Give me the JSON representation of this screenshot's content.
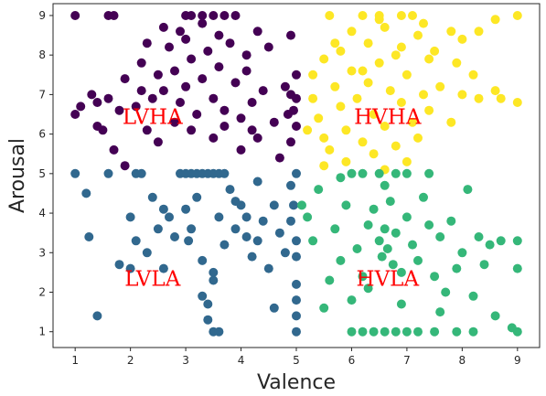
{
  "chart_data": {
    "type": "scatter",
    "xlabel": "Valence",
    "ylabel": "Arousal",
    "xlim": [
      0.6,
      9.4
    ],
    "ylim": [
      0.6,
      9.3
    ],
    "xticks": [
      1,
      2,
      3,
      4,
      5,
      6,
      7,
      8,
      9
    ],
    "yticks": [
      1,
      2,
      3,
      4,
      5,
      6,
      7,
      8,
      9
    ],
    "grid": false,
    "colors": {
      "LVHA": "#440154",
      "HVHA": "#fde725",
      "LVLA": "#31688e",
      "HVLA": "#35b779",
      "annotation": "#ff0000"
    },
    "annotations": [
      {
        "text": "LVHA",
        "x": 2.4,
        "y": 6.4
      },
      {
        "text": "HVHA",
        "x": 6.65,
        "y": 6.4
      },
      {
        "text": "LVLA",
        "x": 2.4,
        "y": 2.3
      },
      {
        "text": "HVLA",
        "x": 6.65,
        "y": 2.3
      }
    ],
    "series": [
      {
        "group": "LVHA",
        "points": [
          [
            1,
            9
          ],
          [
            1.6,
            9
          ],
          [
            1.7,
            9
          ],
          [
            3,
            9
          ],
          [
            3.1,
            9
          ],
          [
            3.3,
            9
          ],
          [
            3.5,
            9
          ],
          [
            3.7,
            9
          ],
          [
            3.9,
            9
          ],
          [
            4.3,
            8.6
          ],
          [
            4.5,
            8.2
          ],
          [
            4.9,
            8.5
          ],
          [
            1,
            6.5
          ],
          [
            1.1,
            6.7
          ],
          [
            1.3,
            7
          ],
          [
            1.4,
            6.8
          ],
          [
            1.5,
            6.1
          ],
          [
            1.6,
            6.9
          ],
          [
            1.7,
            5.6
          ],
          [
            1.8,
            6.6
          ],
          [
            1.9,
            7.4
          ],
          [
            2.1,
            6.7
          ],
          [
            2.2,
            7.8
          ],
          [
            2.3,
            6.1
          ],
          [
            2.4,
            6.9
          ],
          [
            2.5,
            7.5
          ],
          [
            2.6,
            7.1
          ],
          [
            2.7,
            8.2
          ],
          [
            2.8,
            7.6
          ],
          [
            2.9,
            6.8
          ],
          [
            3,
            7.2
          ],
          [
            3.1,
            7.9
          ],
          [
            3.2,
            6.5
          ],
          [
            3.3,
            7.4
          ],
          [
            3.4,
            8.1
          ],
          [
            3.5,
            6.9
          ],
          [
            3.6,
            7.7
          ],
          [
            3.7,
            6.6
          ],
          [
            3.8,
            8.3
          ],
          [
            3.9,
            7.3
          ],
          [
            4,
            6.4
          ],
          [
            4.1,
            7.6
          ],
          [
            4.2,
            6.8
          ],
          [
            4.3,
            5.9
          ],
          [
            4.4,
            7.1
          ],
          [
            4.6,
            6.3
          ],
          [
            4.8,
            7.2
          ],
          [
            4.85,
            6.5
          ],
          [
            4.9,
            7
          ],
          [
            4.95,
            6.6
          ],
          [
            5,
            7.5
          ],
          [
            5,
            6.9
          ],
          [
            5,
            6.2
          ],
          [
            4.9,
            5.8
          ],
          [
            2.9,
            8.6
          ],
          [
            3,
            8.4
          ],
          [
            3.3,
            8.8
          ],
          [
            2.6,
            8.7
          ],
          [
            2.2,
            7.1
          ],
          [
            2.8,
            6.3
          ],
          [
            3.5,
            5.9
          ],
          [
            3.7,
            6.2
          ],
          [
            4,
            5.6
          ],
          [
            4.2,
            6.1
          ],
          [
            2.5,
            5.8
          ],
          [
            1.4,
            6.2
          ],
          [
            3.1,
            6.1
          ],
          [
            2.3,
            8.3
          ],
          [
            3.6,
            8.5
          ],
          [
            4.1,
            8
          ],
          [
            1.9,
            5.2
          ],
          [
            4.7,
            5.4
          ]
        ]
      },
      {
        "group": "HVHA",
        "points": [
          [
            5.6,
            9
          ],
          [
            6.2,
            9
          ],
          [
            6.5,
            9
          ],
          [
            6.9,
            9
          ],
          [
            7.1,
            9
          ],
          [
            9,
            9
          ],
          [
            8.6,
            8.9
          ],
          [
            8.3,
            8.6
          ],
          [
            8,
            8.4
          ],
          [
            7.8,
            8.6
          ],
          [
            7.5,
            8.1
          ],
          [
            7.2,
            8.5
          ],
          [
            6.9,
            8.2
          ],
          [
            6.6,
            8.7
          ],
          [
            6.3,
            8.3
          ],
          [
            6,
            8.6
          ],
          [
            5.8,
            8.1
          ],
          [
            5.5,
            7.9
          ],
          [
            5.3,
            7.5
          ],
          [
            5.3,
            6.9
          ],
          [
            5.4,
            6.4
          ],
          [
            5.5,
            5.9
          ],
          [
            5.6,
            5.6
          ],
          [
            5.7,
            7.2
          ],
          [
            5.8,
            6.7
          ],
          [
            5.9,
            6.1
          ],
          [
            6,
            7.6
          ],
          [
            6.1,
            6.9
          ],
          [
            6.2,
            5.8
          ],
          [
            6.3,
            7.3
          ],
          [
            6.4,
            6.5
          ],
          [
            6.5,
            7.8
          ],
          [
            6.6,
            6.2
          ],
          [
            6.7,
            7.1
          ],
          [
            6.8,
            5.7
          ],
          [
            6.9,
            6.8
          ],
          [
            7,
            7.5
          ],
          [
            7.1,
            6.3
          ],
          [
            7.2,
            5.9
          ],
          [
            7.3,
            7
          ],
          [
            7.4,
            6.6
          ],
          [
            7.6,
            7.2
          ],
          [
            7.8,
            6.3
          ],
          [
            8,
            7
          ],
          [
            8.3,
            6.9
          ],
          [
            8.6,
            7.1
          ],
          [
            8.7,
            6.9
          ],
          [
            9,
            6.8
          ],
          [
            6.6,
            5.1
          ],
          [
            7,
            5.3
          ],
          [
            6.4,
            5.5
          ],
          [
            5.9,
            5.3
          ],
          [
            5.5,
            5.2
          ],
          [
            6.8,
            8
          ],
          [
            7.4,
            7.9
          ],
          [
            6.2,
            7.6
          ],
          [
            5.7,
            8.3
          ],
          [
            6.5,
            8.9
          ],
          [
            7.3,
            8.8
          ],
          [
            7.9,
            7.8
          ],
          [
            8.2,
            7.5
          ],
          [
            5.2,
            6.1
          ]
        ]
      },
      {
        "group": "LVLA",
        "points": [
          [
            1,
            5
          ],
          [
            1.2,
            4.5
          ],
          [
            1.25,
            3.4
          ],
          [
            1.4,
            1.4
          ],
          [
            1.6,
            5
          ],
          [
            1.8,
            2.7
          ],
          [
            2,
            2.6
          ],
          [
            2.1,
            3.3
          ],
          [
            2.1,
            5
          ],
          [
            2.2,
            5
          ],
          [
            2.3,
            3
          ],
          [
            2.5,
            3.6
          ],
          [
            2.6,
            2.6
          ],
          [
            2.7,
            3.9
          ],
          [
            2.8,
            3.4
          ],
          [
            2.9,
            5
          ],
          [
            3,
            5
          ],
          [
            3.1,
            5
          ],
          [
            3.2,
            5
          ],
          [
            3.3,
            5
          ],
          [
            3.4,
            5
          ],
          [
            3.5,
            5
          ],
          [
            3.6,
            5
          ],
          [
            3.7,
            5
          ],
          [
            3,
            4.1
          ],
          [
            3.05,
            3.3
          ],
          [
            3.1,
            3.6
          ],
          [
            3.2,
            4.4
          ],
          [
            3.3,
            2.8
          ],
          [
            3.4,
            1.7
          ],
          [
            3.5,
            2.3
          ],
          [
            3.5,
            1
          ],
          [
            3.6,
            1
          ],
          [
            3.6,
            3.9
          ],
          [
            3.7,
            3.2
          ],
          [
            3.8,
            4.6
          ],
          [
            3.9,
            3.6
          ],
          [
            4,
            4.2
          ],
          [
            4.1,
            3.4
          ],
          [
            4.2,
            2.9
          ],
          [
            4.3,
            4.8
          ],
          [
            4.3,
            3.3
          ],
          [
            4.4,
            3.8
          ],
          [
            4.5,
            2.6
          ],
          [
            4.6,
            4.2
          ],
          [
            4.7,
            3.5
          ],
          [
            4.8,
            3
          ],
          [
            4.9,
            4.7
          ],
          [
            4.9,
            3.8
          ],
          [
            5,
            3.3
          ],
          [
            5,
            2.9
          ],
          [
            5,
            2.2
          ],
          [
            5,
            1.8
          ],
          [
            5,
            1.4
          ],
          [
            5,
            1
          ],
          [
            4.95,
            4.2
          ],
          [
            5,
            5
          ],
          [
            3.3,
            1.9
          ],
          [
            3.4,
            1.3
          ],
          [
            3.5,
            2.5
          ],
          [
            2.4,
            4.4
          ],
          [
            2,
            3.9
          ],
          [
            2.6,
            4.1
          ],
          [
            3.9,
            4.3
          ],
          [
            4.1,
            3.9
          ],
          [
            4.6,
            1.6
          ]
        ]
      },
      {
        "group": "HVLA",
        "points": [
          [
            5.1,
            4.2
          ],
          [
            5.2,
            3.9
          ],
          [
            5.3,
            3.3
          ],
          [
            5.4,
            4.6
          ],
          [
            5.5,
            1.6
          ],
          [
            5.6,
            2.3
          ],
          [
            5.7,
            3.6
          ],
          [
            5.8,
            2.8
          ],
          [
            5.9,
            4.2
          ],
          [
            6,
            1.8
          ],
          [
            6.1,
            3.1
          ],
          [
            6.2,
            2.4
          ],
          [
            6.3,
            3.7
          ],
          [
            6.4,
            4.1
          ],
          [
            6.5,
            3.3
          ],
          [
            6.55,
            2.9
          ],
          [
            6.6,
            3.6
          ],
          [
            6.65,
            3.1
          ],
          [
            6.7,
            4.3
          ],
          [
            6.75,
            2.7
          ],
          [
            6.8,
            3.5
          ],
          [
            6.9,
            2.5
          ],
          [
            7,
            3.9
          ],
          [
            7.1,
            3.2
          ],
          [
            7.2,
            2.8
          ],
          [
            7.3,
            4.4
          ],
          [
            7.4,
            3.7
          ],
          [
            7.5,
            2.4
          ],
          [
            7.6,
            3.4
          ],
          [
            7.7,
            2
          ],
          [
            7.8,
            3.8
          ],
          [
            7.9,
            2.6
          ],
          [
            8,
            3
          ],
          [
            8.1,
            4.6
          ],
          [
            8.2,
            1.9
          ],
          [
            8.3,
            3.4
          ],
          [
            8.4,
            2.7
          ],
          [
            8.5,
            3.2
          ],
          [
            8.6,
            1.4
          ],
          [
            8.7,
            3.3
          ],
          [
            8.9,
            1.1
          ],
          [
            9,
            3.3
          ],
          [
            9,
            1
          ],
          [
            9,
            2.6
          ],
          [
            6,
            1
          ],
          [
            6.2,
            1
          ],
          [
            6.4,
            1
          ],
          [
            6.6,
            1
          ],
          [
            6.8,
            1
          ],
          [
            7,
            1
          ],
          [
            7.2,
            1
          ],
          [
            7.5,
            1
          ],
          [
            7.9,
            1
          ],
          [
            8.2,
            1
          ],
          [
            6,
            5
          ],
          [
            6.2,
            5
          ],
          [
            6.5,
            5
          ],
          [
            6.8,
            5
          ],
          [
            7,
            5
          ],
          [
            7.4,
            5
          ],
          [
            6.3,
            2.1
          ],
          [
            6.9,
            1.7
          ],
          [
            7.6,
            1.5
          ],
          [
            5.8,
            4.9
          ],
          [
            6.6,
            4.7
          ]
        ]
      }
    ]
  }
}
